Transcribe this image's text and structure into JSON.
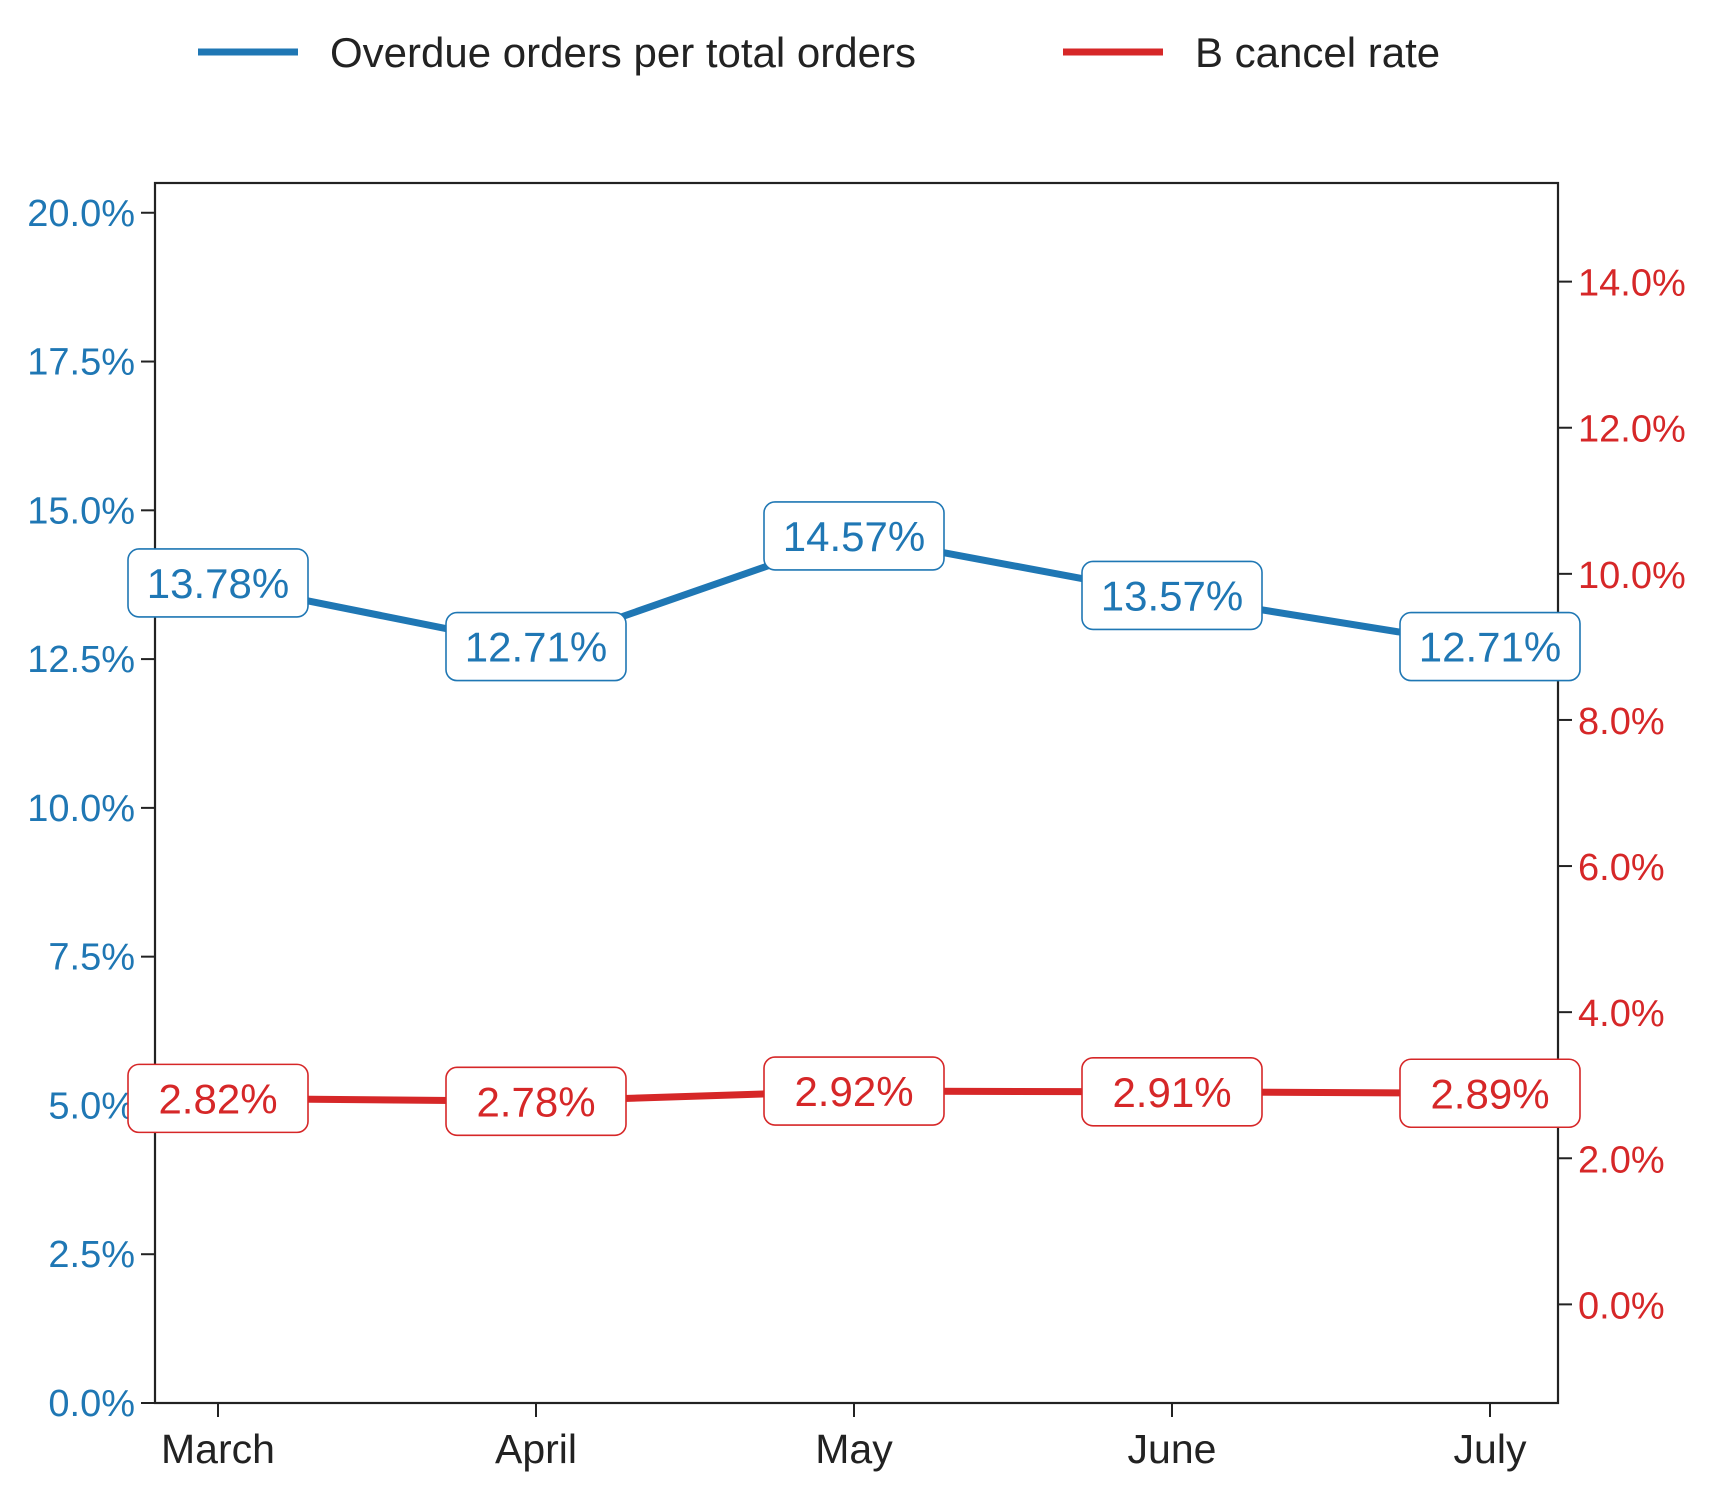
{
  "chart_data": {
    "type": "line",
    "title": "",
    "xlabel": "",
    "categories": [
      "March",
      "April",
      "May",
      "June",
      "July"
    ],
    "legend_position": "top-center",
    "grid": false,
    "series": [
      {
        "name": "Overdue orders per total orders",
        "axis": "left",
        "color": "#1f77b4",
        "values": [
          13.78,
          12.71,
          14.57,
          13.57,
          12.71
        ],
        "labels": [
          "13.78%",
          "12.71%",
          "14.57%",
          "13.57%",
          "12.71%"
        ]
      },
      {
        "name": "B cancel rate",
        "axis": "right",
        "color": "#d62728",
        "values": [
          2.82,
          2.78,
          2.92,
          2.91,
          2.89
        ],
        "labels": [
          "2.82%",
          "2.78%",
          "2.92%",
          "2.91%",
          "2.89%"
        ]
      }
    ],
    "y_left": {
      "range": [
        0,
        20.5
      ],
      "ticks": [
        0,
        2.5,
        5,
        7.5,
        10,
        12.5,
        15,
        17.5,
        20
      ],
      "tick_labels": [
        "0.0%",
        "2.5%",
        "5.0%",
        "7.5%",
        "10.0%",
        "12.5%",
        "15.0%",
        "17.5%",
        "20.0%"
      ],
      "color": "#1f77b4"
    },
    "y_right": {
      "range": [
        -1.35,
        15.35
      ],
      "ticks": [
        0,
        2,
        4,
        6,
        8,
        10,
        12,
        14
      ],
      "tick_labels": [
        "0.0%",
        "2.0%",
        "4.0%",
        "6.0%",
        "8.0%",
        "10.0%",
        "12.0%",
        "14.0%"
      ],
      "color": "#d62728"
    }
  }
}
